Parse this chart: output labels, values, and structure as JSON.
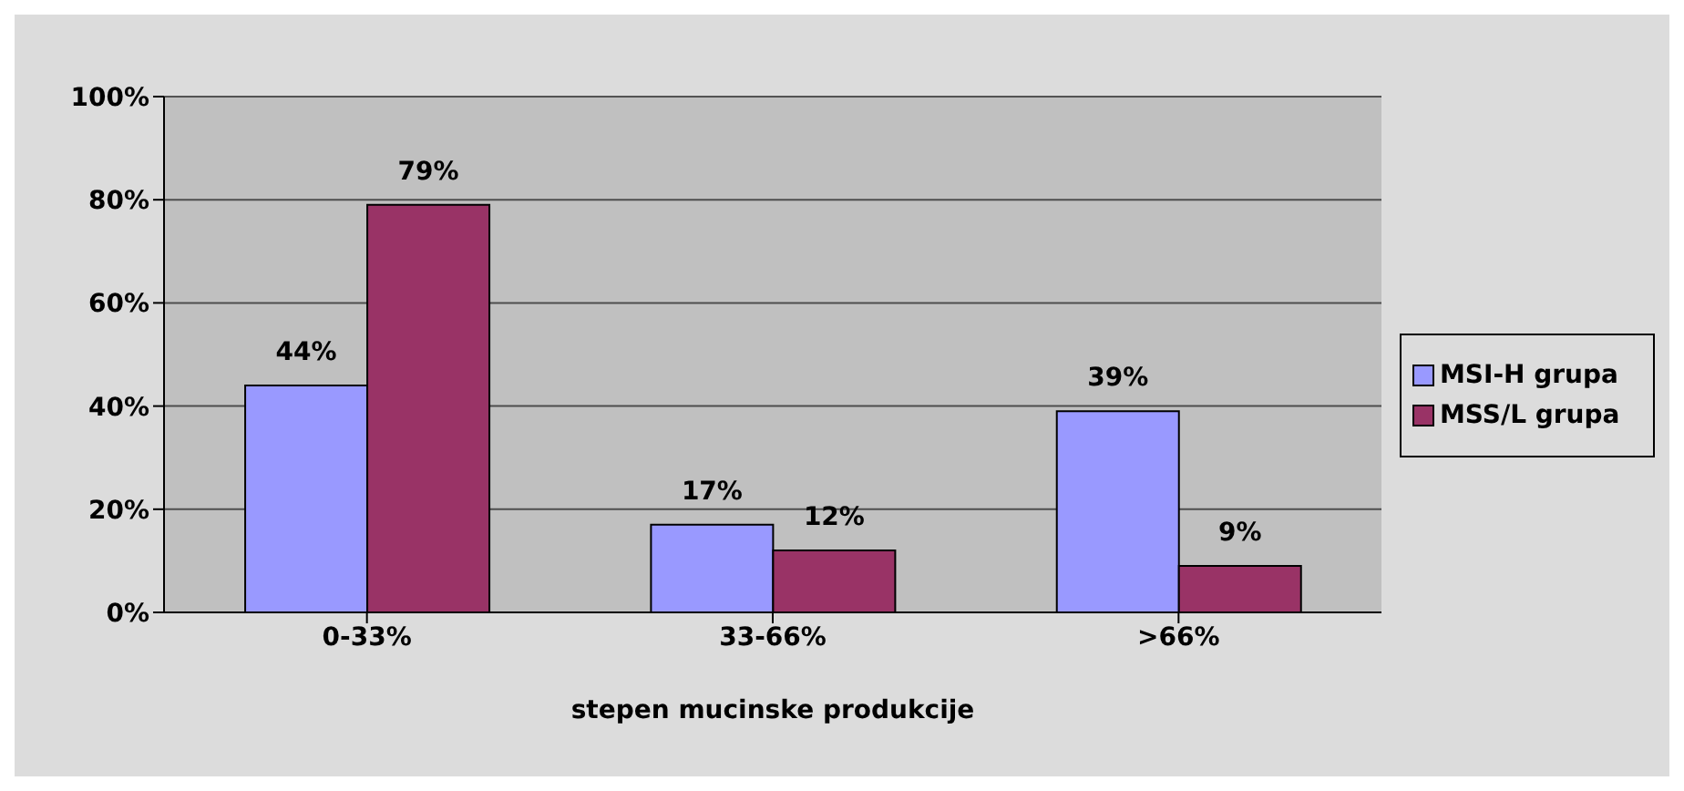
{
  "chart_data": {
    "type": "bar",
    "xlabel": "stepen mucinske produkcije",
    "categories": [
      "0-33%",
      "33-66%",
      ">66%"
    ],
    "series": [
      {
        "name": "MSI-H grupa",
        "color": "#9999ff",
        "values": [
          44,
          17,
          39
        ],
        "value_labels": [
          "44%",
          "17%",
          "39%"
        ]
      },
      {
        "name": "MSS/L grupa",
        "color": "#993366",
        "values": [
          79,
          12,
          9
        ],
        "value_labels": [
          "79%",
          "12%",
          "9%"
        ]
      }
    ],
    "ylim": [
      0,
      100
    ],
    "yticks": [
      {
        "value": 0,
        "label": "0%"
      },
      {
        "value": 20,
        "label": "20%"
      },
      {
        "value": 40,
        "label": "40%"
      },
      {
        "value": 60,
        "label": "60%"
      },
      {
        "value": 80,
        "label": "80%"
      },
      {
        "value": 100,
        "label": "100%"
      }
    ],
    "grid": "y",
    "legend": "right"
  }
}
